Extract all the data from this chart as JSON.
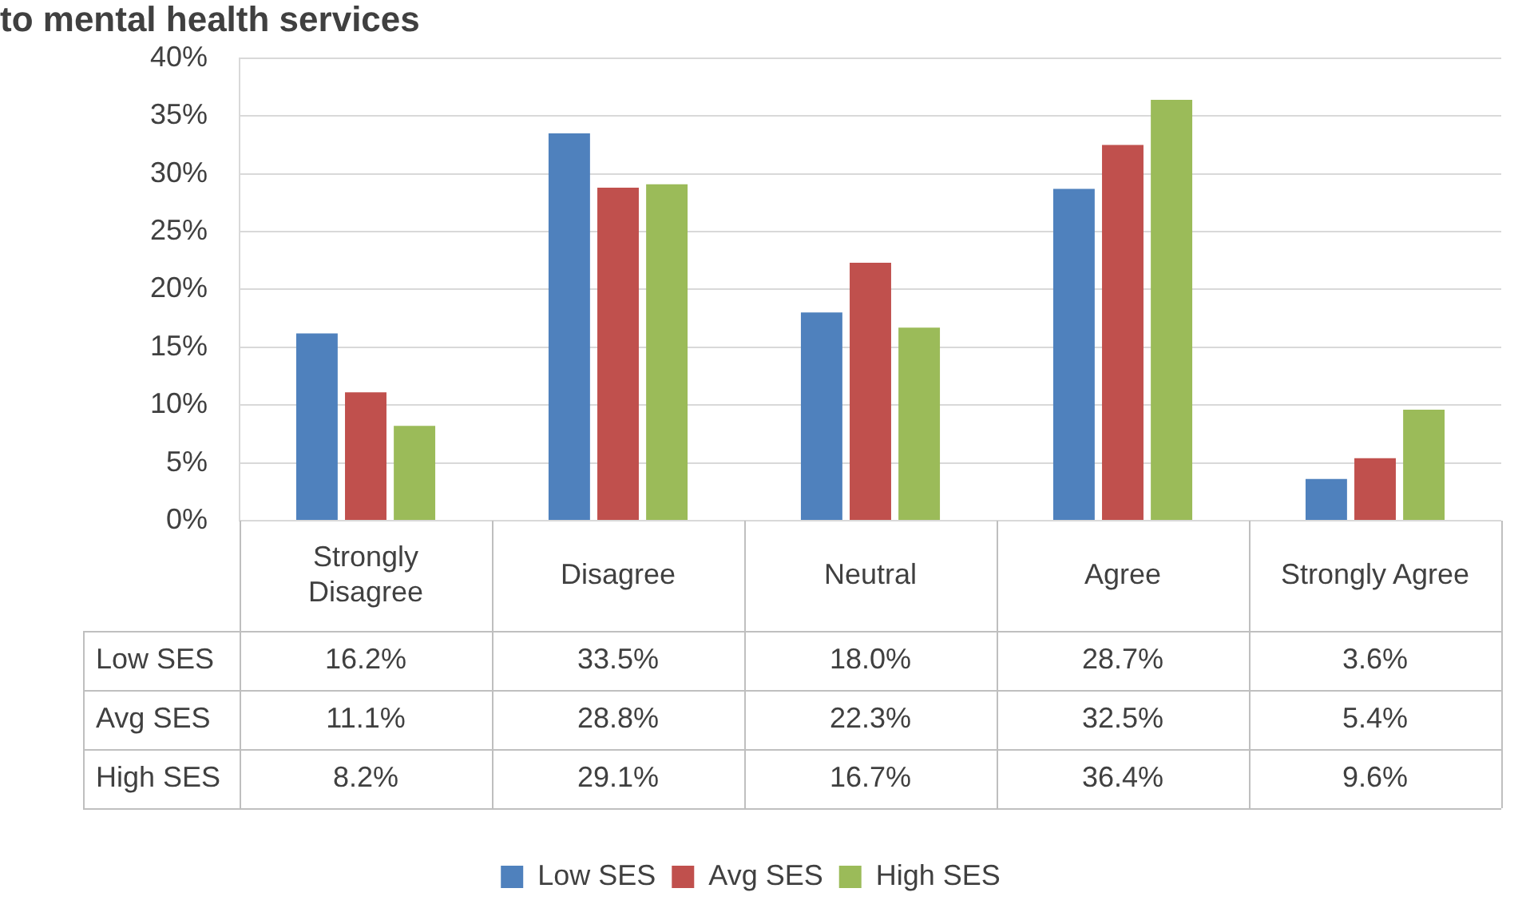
{
  "chart_data": {
    "type": "bar",
    "title": "to mental health services",
    "categories": [
      "Strongly Disagree",
      "Disagree",
      "Neutral",
      "Agree",
      "Strongly Agree"
    ],
    "series": [
      {
        "name": "Low SES",
        "color": "#4f81bd",
        "values": [
          16.2,
          33.5,
          18.0,
          28.7,
          3.6
        ],
        "value_labels": [
          "16.2%",
          "33.5%",
          "18.0%",
          "28.7%",
          "3.6%"
        ]
      },
      {
        "name": "Avg SES",
        "color": "#c0504d",
        "values": [
          11.1,
          28.8,
          22.3,
          32.5,
          5.4
        ],
        "value_labels": [
          "11.1%",
          "28.8%",
          "22.3%",
          "32.5%",
          "5.4%"
        ]
      },
      {
        "name": "High SES",
        "color": "#9bbb59",
        "values": [
          8.2,
          29.1,
          16.7,
          36.4,
          9.6
        ],
        "value_labels": [
          "8.2%",
          "29.1%",
          "16.7%",
          "36.4%",
          "9.6%"
        ]
      }
    ],
    "ylim": [
      0,
      40
    ],
    "yticks": [
      {
        "value": 0,
        "label": "0%"
      },
      {
        "value": 5,
        "label": "5%"
      },
      {
        "value": 10,
        "label": "10%"
      },
      {
        "value": 15,
        "label": "15%"
      },
      {
        "value": 20,
        "label": "20%"
      },
      {
        "value": 25,
        "label": "25%"
      },
      {
        "value": 30,
        "label": "30%"
      },
      {
        "value": 35,
        "label": "35%"
      },
      {
        "value": 40,
        "label": "40%"
      }
    ],
    "grid": "y",
    "legend": "bottom"
  }
}
